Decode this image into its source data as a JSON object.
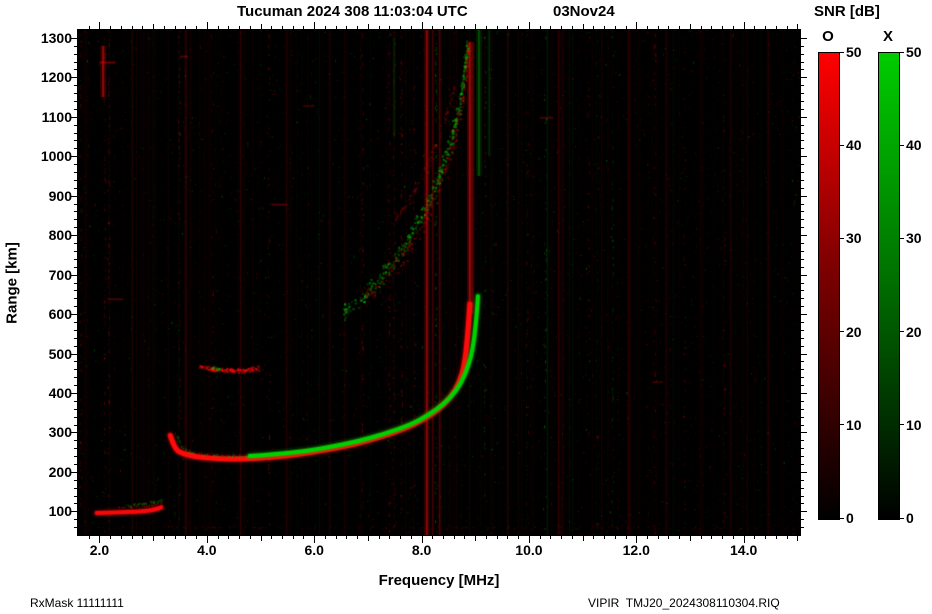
{
  "header": {
    "title": "Tucuman 2024 308 11:03:04 UTC",
    "date": "03Nov24",
    "snr_label": "SNR [dB]"
  },
  "footer": {
    "left": "RxMask 11111111",
    "right": "VIPIR  TMJ20_2024308110304.RIQ"
  },
  "colorbars": [
    {
      "label": "O",
      "top_color": "#ff0000",
      "mid_color": "#800000",
      "bottom_color": "#000000",
      "ticks": [
        0,
        10,
        20,
        30,
        40,
        50
      ]
    },
    {
      "label": "X",
      "top_color": "#00cc00",
      "mid_color": "#007700",
      "bottom_color": "#000000",
      "ticks": [
        0,
        10,
        20,
        30,
        40,
        50
      ]
    }
  ],
  "chart_data": {
    "type": "heatmap",
    "title": "Tucuman 2024 308 11:03:04 UTC 03Nov24",
    "xlabel": "Frequency [MHz]",
    "ylabel": "Range [km]",
    "xlim": [
      1.6,
      15.05
    ],
    "ylim": [
      40,
      1320
    ],
    "xticks": [
      2.0,
      4.0,
      6.0,
      8.0,
      10.0,
      12.0,
      14.0
    ],
    "xtick_labels": [
      "2.0",
      "4.0",
      "6.0",
      "8.0",
      "10.0",
      "12.0",
      "14.0"
    ],
    "yticks": [
      100,
      200,
      300,
      400,
      500,
      600,
      700,
      800,
      900,
      1000,
      1100,
      1200,
      1300
    ],
    "x_minor_step": 0.2,
    "y_minor_step": 20,
    "snr_range_db": [
      0,
      50
    ],
    "colors": {
      "O": "#ff0000",
      "X": "#00cc00",
      "background": "#000000"
    },
    "traces": [
      {
        "name": "E-layer-O",
        "mode": "O",
        "style": "solid",
        "width": 4,
        "alpha": 0.95,
        "points": [
          [
            1.95,
            96
          ],
          [
            2.3,
            97
          ],
          [
            2.7,
            99
          ],
          [
            3.0,
            103
          ],
          [
            3.15,
            110
          ]
        ]
      },
      {
        "name": "E-layer-O-upper",
        "mode": "O",
        "style": "speckle",
        "jitter": 4,
        "density": 1.5,
        "alpha": 0.45,
        "size": 1,
        "points": [
          [
            2.35,
            110
          ],
          [
            2.7,
            113
          ],
          [
            3.0,
            117
          ],
          [
            3.15,
            124
          ]
        ]
      },
      {
        "name": "E-layer-X",
        "mode": "X",
        "style": "speckle",
        "jitter": 5,
        "density": 1.6,
        "alpha": 0.5,
        "size": 1,
        "points": [
          [
            2.5,
            116
          ],
          [
            2.8,
            120
          ],
          [
            3.05,
            124
          ],
          [
            3.18,
            131
          ]
        ]
      },
      {
        "name": "F-trace-O",
        "mode": "O",
        "style": "solid",
        "width": 5,
        "alpha": 1,
        "points": [
          [
            3.32,
            292
          ],
          [
            3.4,
            258
          ],
          [
            3.55,
            246
          ],
          [
            3.8,
            238
          ],
          [
            4.2,
            233
          ],
          [
            4.7,
            232
          ],
          [
            5.2,
            237
          ],
          [
            5.7,
            244
          ],
          [
            6.2,
            255
          ],
          [
            6.7,
            268
          ],
          [
            7.2,
            287
          ],
          [
            7.7,
            310
          ],
          [
            8.0,
            330
          ],
          [
            8.3,
            356
          ],
          [
            8.55,
            390
          ],
          [
            8.7,
            425
          ],
          [
            8.8,
            470
          ],
          [
            8.86,
            545
          ],
          [
            8.9,
            625
          ]
        ]
      },
      {
        "name": "F-trace-X-start",
        "mode": "X",
        "style": "speckle",
        "jitter": 5,
        "density": 1.2,
        "alpha": 0.55,
        "size": 1,
        "points": [
          [
            3.42,
            298
          ],
          [
            3.5,
            266
          ],
          [
            3.65,
            252
          ],
          [
            3.9,
            245
          ],
          [
            4.3,
            241
          ],
          [
            4.8,
            240
          ]
        ]
      },
      {
        "name": "F-trace-X",
        "mode": "X",
        "style": "solid",
        "width": 4,
        "alpha": 1,
        "points": [
          [
            4.8,
            240
          ],
          [
            5.3,
            245
          ],
          [
            5.8,
            252
          ],
          [
            6.3,
            263
          ],
          [
            6.8,
            277
          ],
          [
            7.3,
            296
          ],
          [
            7.8,
            320
          ],
          [
            8.1,
            342
          ],
          [
            8.4,
            370
          ],
          [
            8.65,
            405
          ],
          [
            8.82,
            448
          ],
          [
            8.95,
            505
          ],
          [
            9.02,
            585
          ],
          [
            9.05,
            645
          ]
        ]
      },
      {
        "name": "Es-second-hop-O",
        "mode": "O",
        "style": "speckle",
        "jitter": 7,
        "density": 2.2,
        "alpha": 0.6,
        "size": 2,
        "points": [
          [
            3.85,
            470
          ],
          [
            4.1,
            462
          ],
          [
            4.4,
            458
          ],
          [
            4.7,
            459
          ],
          [
            4.95,
            464
          ]
        ]
      },
      {
        "name": "Es-second-hop-X",
        "mode": "X",
        "style": "speckle",
        "jitter": 4,
        "density": 1.5,
        "alpha": 0.5,
        "size": 2,
        "points": [
          [
            4.08,
            466
          ],
          [
            4.22,
            462
          ]
        ]
      },
      {
        "name": "multihop-X",
        "mode": "X",
        "style": "speckle",
        "jitter": 28,
        "density": 1.2,
        "alpha": 0.5,
        "size": 2,
        "points": [
          [
            6.55,
            605
          ],
          [
            6.9,
            645
          ],
          [
            7.2,
            690
          ],
          [
            7.5,
            742
          ],
          [
            7.8,
            805
          ],
          [
            8.1,
            880
          ],
          [
            8.35,
            960
          ],
          [
            8.55,
            1045
          ],
          [
            8.7,
            1135
          ],
          [
            8.8,
            1230
          ],
          [
            8.84,
            1290
          ]
        ]
      },
      {
        "name": "multihop-O",
        "mode": "O",
        "style": "speckle",
        "jitter": 35,
        "density": 0.9,
        "alpha": 0.32,
        "size": 2,
        "points": [
          [
            6.9,
            640
          ],
          [
            7.3,
            690
          ],
          [
            7.7,
            760
          ],
          [
            8.0,
            830
          ],
          [
            8.3,
            920
          ],
          [
            8.55,
            1020
          ],
          [
            8.72,
            1120
          ],
          [
            8.82,
            1220
          ],
          [
            8.87,
            1290
          ]
        ]
      },
      {
        "name": "multihop-O-inner",
        "mode": "O",
        "style": "speckle",
        "jitter": 15,
        "density": 0.7,
        "alpha": 0.22,
        "size": 2,
        "points": [
          [
            7.4,
            820
          ],
          [
            7.8,
            900
          ],
          [
            8.1,
            980
          ],
          [
            8.4,
            1080
          ],
          [
            8.6,
            1180
          ]
        ]
      },
      {
        "name": "bottom-noise-row",
        "mode": "O",
        "style": "speckle",
        "jitter": 5,
        "density": 0.25,
        "alpha": 0.35,
        "size": 1,
        "points": [
          [
            1.9,
            60
          ],
          [
            8.5,
            60
          ],
          [
            15.0,
            58
          ]
        ]
      }
    ],
    "rfi_stripes": [
      {
        "f": 2.05,
        "mode": "O",
        "alpha": 0.5,
        "w": 2,
        "km": [
          1150,
          1280
        ]
      },
      {
        "f": 3.6,
        "mode": "O",
        "alpha": 0.18,
        "w": 1,
        "km": [
          40,
          1320
        ]
      },
      {
        "f": 8.08,
        "mode": "O",
        "alpha": 0.45,
        "w": 2,
        "km": [
          40,
          1320
        ]
      },
      {
        "f": 8.2,
        "mode": "O",
        "alpha": 0.25,
        "w": 1,
        "km": [
          40,
          1320
        ]
      },
      {
        "f": 8.33,
        "mode": "O",
        "alpha": 0.3,
        "w": 1,
        "km": [
          40,
          1320
        ]
      },
      {
        "f": 8.88,
        "mode": "O",
        "alpha": 0.55,
        "w": 2,
        "km": [
          600,
          1290
        ]
      },
      {
        "f": 8.95,
        "mode": "O",
        "alpha": 0.3,
        "w": 1,
        "km": [
          600,
          1290
        ]
      },
      {
        "f": 9.05,
        "mode": "X",
        "alpha": 0.3,
        "w": 2,
        "km": [
          950,
          1320
        ]
      },
      {
        "f": 9.25,
        "mode": "X",
        "alpha": 0.2,
        "w": 1,
        "km": [
          1000,
          1320
        ]
      },
      {
        "f": 7.48,
        "mode": "X",
        "alpha": 0.15,
        "w": 1,
        "km": [
          1050,
          1300
        ]
      },
      {
        "f": 4.62,
        "mode": "O",
        "alpha": 0.12,
        "w": 1,
        "km": [
          40,
          1320
        ]
      },
      {
        "f": 5.48,
        "mode": "O",
        "alpha": 0.12,
        "w": 1,
        "km": [
          40,
          1320
        ]
      },
      {
        "f": 6.28,
        "mode": "O",
        "alpha": 0.1,
        "w": 1,
        "km": [
          40,
          1320
        ]
      },
      {
        "f": 10.55,
        "mode": "O",
        "alpha": 0.15,
        "w": 1,
        "km": [
          40,
          1320
        ]
      },
      {
        "f": 10.62,
        "mode": "O",
        "alpha": 0.1,
        "w": 1,
        "km": [
          40,
          1320
        ]
      },
      {
        "f": 11.85,
        "mode": "O",
        "alpha": 0.1,
        "w": 1,
        "km": [
          40,
          1320
        ]
      },
      {
        "f": 12.55,
        "mode": "O",
        "alpha": 0.1,
        "w": 1,
        "km": [
          40,
          1320
        ]
      },
      {
        "f": 13.75,
        "mode": "O",
        "alpha": 0.1,
        "w": 1,
        "km": [
          40,
          1320
        ]
      },
      {
        "f": 14.45,
        "mode": "O",
        "alpha": 0.12,
        "w": 1,
        "km": [
          40,
          1320
        ]
      },
      {
        "f": 2.6,
        "mode": "O",
        "alpha": 0.1,
        "w": 1,
        "km": [
          40,
          1320
        ]
      },
      {
        "f": 9.6,
        "mode": "O",
        "alpha": 0.1,
        "w": 1,
        "km": [
          40,
          1320
        ]
      }
    ],
    "dashes": [
      {
        "f0": 5.2,
        "f1": 5.5,
        "km": 880,
        "mode": "O",
        "alpha": 0.3
      },
      {
        "f0": 2.15,
        "f1": 2.45,
        "km": 640,
        "mode": "O",
        "alpha": 0.25
      },
      {
        "f0": 2.0,
        "f1": 2.3,
        "km": 1240,
        "mode": "O",
        "alpha": 0.4
      },
      {
        "f0": 5.8,
        "f1": 6.0,
        "km": 1130,
        "mode": "O",
        "alpha": 0.2
      },
      {
        "f0": 3.5,
        "f1": 3.65,
        "km": 1255,
        "mode": "O",
        "alpha": 0.3
      },
      {
        "f0": 10.2,
        "f1": 10.45,
        "km": 1100,
        "mode": "O",
        "alpha": 0.25
      },
      {
        "f0": 12.3,
        "f1": 12.5,
        "km": 430,
        "mode": "O",
        "alpha": 0.2
      }
    ],
    "noise": {
      "speck_count": 7000,
      "column_count": 150,
      "cluster_columns": 22,
      "red_fraction": 0.62,
      "seed": 7
    }
  }
}
